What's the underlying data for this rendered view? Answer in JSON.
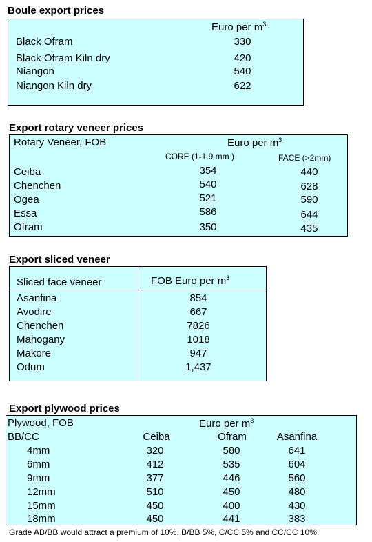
{
  "boule": {
    "title": "Boule export prices",
    "unit": "Euro per m",
    "unit_sup": "3",
    "rows": [
      {
        "name": "Black Ofram",
        "value": "330"
      },
      {
        "name": "Black Ofram  Kiln dry",
        "value": "420"
      },
      {
        "name": "Niangon",
        "value": "540"
      },
      {
        "name": "Niangon Kiln dry",
        "value": "622"
      }
    ]
  },
  "rotary": {
    "title": "Export rotary veneer prices",
    "label": "Rotary Veneer,  FOB",
    "unit": "Euro  per m",
    "unit_sup": "3",
    "col_core": "CORE (1-1.9 mm )",
    "col_face": "FACE (>2mm)",
    "rows": [
      {
        "name": "Ceiba",
        "core": "354",
        "face": "440"
      },
      {
        "name": "Chenchen",
        "core": "540",
        "face": "628"
      },
      {
        "name": "Ogea",
        "core": "521",
        "face": "590"
      },
      {
        "name": "Essa",
        "core": "586",
        "face": "644"
      },
      {
        "name": "Ofram",
        "core": "350",
        "face": "435"
      }
    ]
  },
  "sliced": {
    "title": "Export sliced veneer",
    "col_name": "Sliced face veneer",
    "col_price": "FOB Euro per m",
    "unit_sup": "3",
    "rows": [
      {
        "name": "Asanfina",
        "value": "854"
      },
      {
        "name": "Avodire",
        "value": "667"
      },
      {
        "name": "Chenchen",
        "value": "7826"
      },
      {
        "name": "Mahogany",
        "value": "1018"
      },
      {
        "name": "Makore",
        "value": "947"
      },
      {
        "name": "Odum",
        "value": "1,437"
      }
    ]
  },
  "plywood": {
    "title": "Export plywood prices",
    "label": "Plywood, FOB",
    "unit": "Euro per m",
    "unit_sup": "3",
    "grade_label": "BB/CC",
    "columns": [
      "Ceiba",
      "Ofram",
      "Asanfina"
    ],
    "rows": [
      {
        "size": "4mm",
        "values": [
          "320",
          "580",
          "641"
        ]
      },
      {
        "size": "6mm",
        "values": [
          "412",
          "535",
          "604"
        ]
      },
      {
        "size": "9mm",
        "values": [
          "377",
          "446",
          "560"
        ]
      },
      {
        "size": "12mm",
        "values": [
          "510",
          "450",
          "480"
        ]
      },
      {
        "size": "15mm",
        "values": [
          "450",
          "400",
          "430"
        ]
      },
      {
        "size": "18mm",
        "values": [
          "450",
          "441",
          "383"
        ]
      }
    ],
    "note": "Grade AB/BB would attract a premium of 10%, B/BB 5%, C/CC 5% and CC/CC 10%."
  }
}
